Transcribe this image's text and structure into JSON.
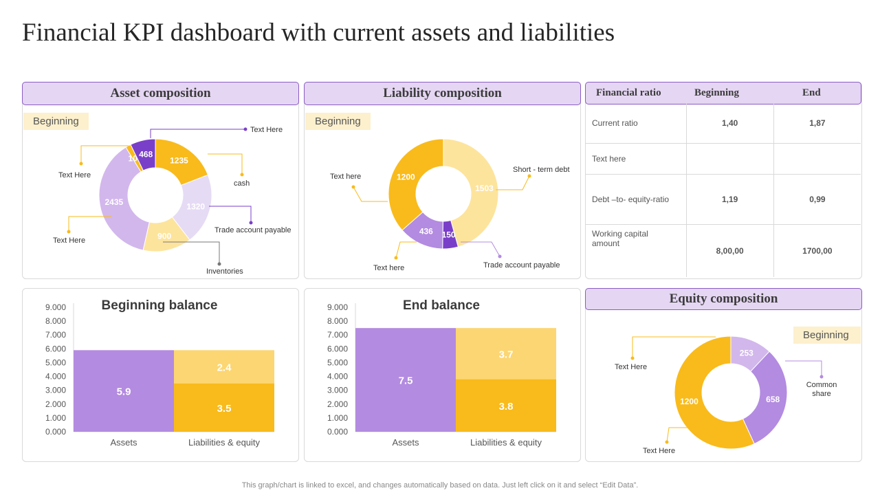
{
  "title": "Financial KPI dashboard with current assets and liabilities",
  "footer": "This graph/chart is linked to excel, and changes automatically based on data. Just left click on it and select “Edit Data”.",
  "colors": {
    "header_bg": "#e5d6f3",
    "header_border": "#8a5bc4",
    "tag_bg": "#fdf0cd",
    "gold": "#f9bb1b",
    "light_gold": "#fcd672",
    "pale_gold": "#fde49d",
    "purple": "#b38be0",
    "dark_purple": "#7a3fc8",
    "light_purple": "#d2b7ec",
    "pale_purple": "#e6dbf5"
  },
  "panels": {
    "asset": {
      "header": "Asset composition",
      "tag": "Beginning"
    },
    "liability": {
      "header": "Liability composition",
      "tag": "Beginning"
    },
    "equity": {
      "header": "Equity composition",
      "tag": "Beginning"
    }
  },
  "ratio_table": {
    "headers": [
      "Financial ratio",
      "Beginning",
      "End"
    ],
    "rows": [
      {
        "label": "Current ratio",
        "beginning": "1,40",
        "end": "1,87"
      },
      {
        "label": "Text here",
        "beginning": "",
        "end": ""
      },
      {
        "label": "Debt –to- equity-ratio",
        "beginning": "1,19",
        "end": "0,99"
      },
      {
        "label": "Working capital amount",
        "beginning": "8,00,00",
        "end": "1700,00"
      }
    ]
  },
  "chart_data": [
    {
      "type": "pie",
      "title": "Asset composition",
      "labels": [
        "cash",
        "Trade account payable",
        "Inventories",
        "Text Here",
        "Text Here",
        "Text Here"
      ],
      "values": [
        1235,
        1320,
        900,
        2435,
        100,
        468
      ],
      "value_labels": [
        "1235",
        "1320",
        "900",
        "2435",
        "100",
        "468"
      ]
    },
    {
      "type": "pie",
      "title": "Liability composition",
      "labels": [
        "Short - term debt",
        "Trade account payable",
        "Text here",
        "Text here"
      ],
      "values": [
        1503,
        150,
        436,
        1200
      ],
      "value_labels": [
        "1503",
        "150",
        "436",
        "1200"
      ]
    },
    {
      "type": "pie",
      "title": "Equity composition",
      "labels": [
        "Text Here",
        "Common share",
        "Text Here"
      ],
      "values": [
        253,
        658,
        1200
      ],
      "value_labels": [
        "253",
        "658",
        "1200"
      ]
    },
    {
      "type": "bar",
      "title": "Beginning balance",
      "categories": [
        "Assets",
        "Liabilities & equity"
      ],
      "series": [
        {
          "values": [
            5.9,
            3.5
          ],
          "labels": [
            "5.9",
            "3.5"
          ]
        },
        {
          "values": [
            0,
            2.4
          ],
          "labels": [
            "",
            "2.4"
          ]
        }
      ],
      "yticks": [
        "0.000",
        "1.000",
        "2.000",
        "3.000",
        "4.000",
        "5.000",
        "6.000",
        "7.000",
        "8.000",
        "9.000"
      ],
      "ylim": [
        0,
        9
      ]
    },
    {
      "type": "bar",
      "title": "End balance",
      "categories": [
        "Assets",
        "Liabilities & equity"
      ],
      "series": [
        {
          "values": [
            7.5,
            3.8
          ],
          "labels": [
            "7.5",
            "3.8"
          ]
        },
        {
          "values": [
            0,
            3.7
          ],
          "labels": [
            "",
            "3.7"
          ]
        }
      ],
      "yticks": [
        "0.000",
        "1.000",
        "2.000",
        "3.000",
        "4.000",
        "5.000",
        "6.000",
        "7.000",
        "8.000",
        "9.000"
      ],
      "ylim": [
        0,
        9
      ]
    }
  ]
}
